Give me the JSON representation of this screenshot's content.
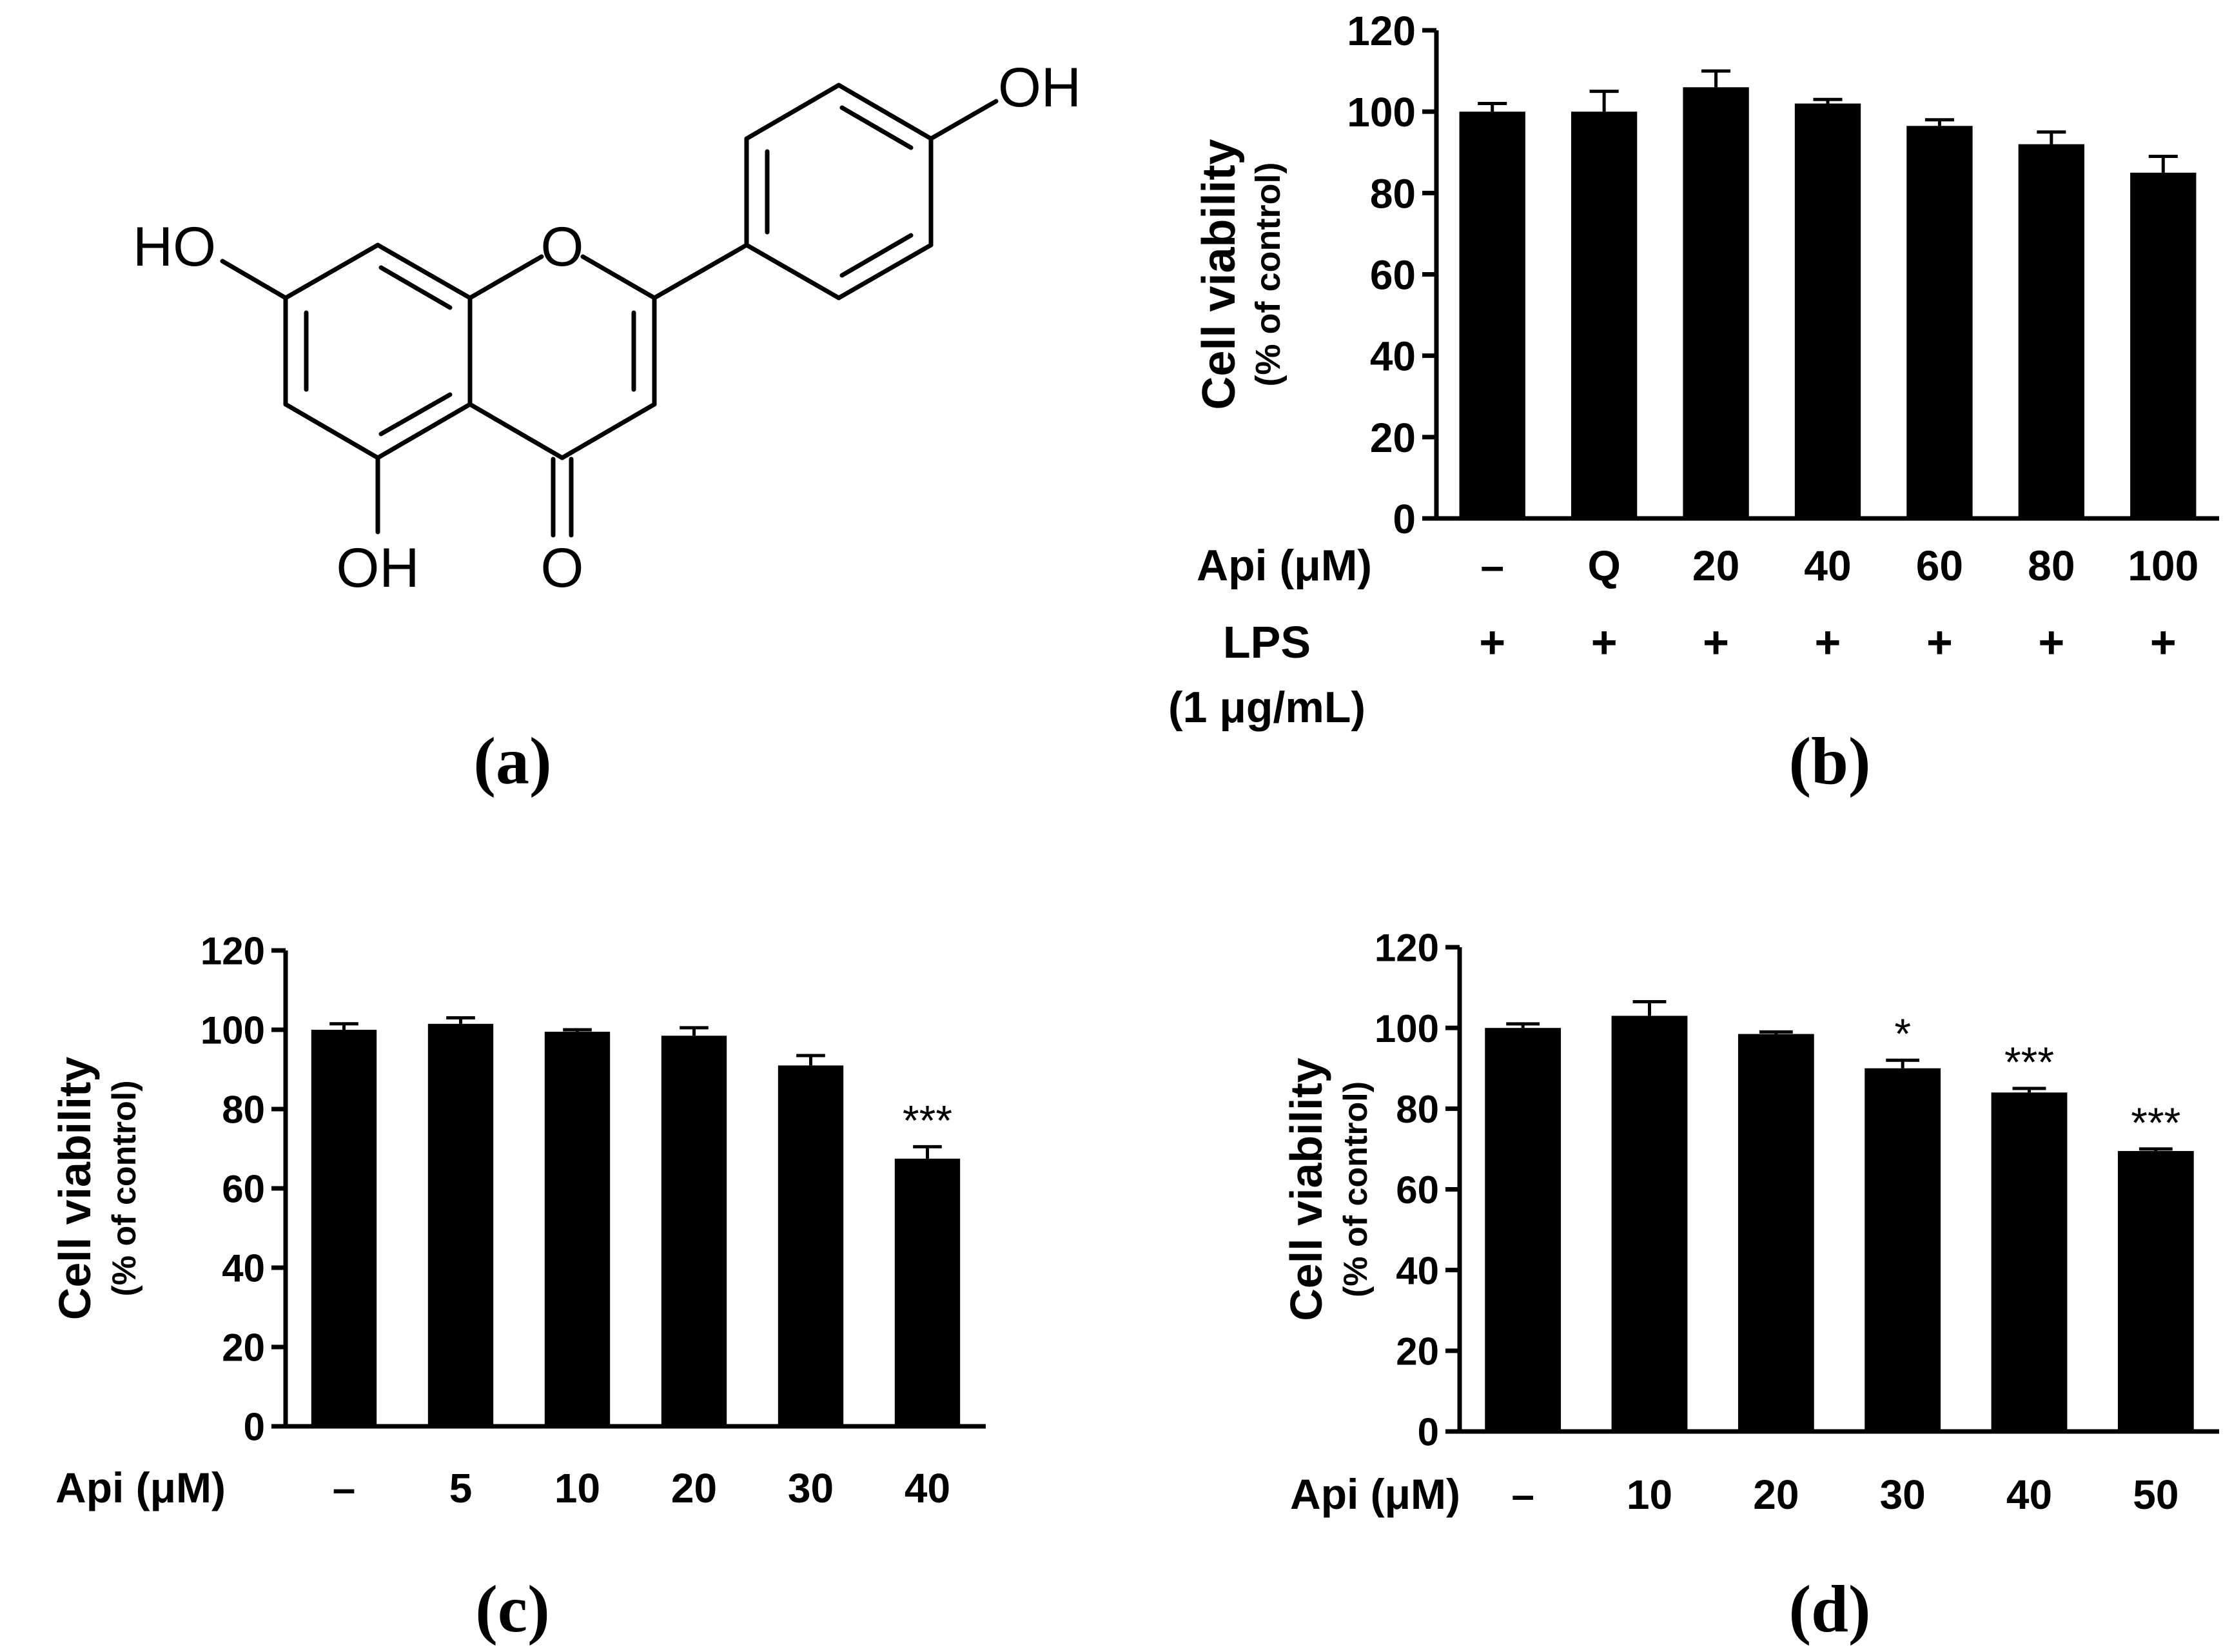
{
  "panels": {
    "a": {
      "label": "(a)",
      "atoms": {
        "oh_top": "OH",
        "ho_left": "HO",
        "o_ring": "O",
        "oh_bottom": "OH",
        "o_carbonyl": "O"
      }
    },
    "b": {
      "label": "(b)"
    },
    "c": {
      "label": "(c)"
    },
    "d": {
      "label": "(d)"
    }
  },
  "colors": {
    "bar": "#000000",
    "axis": "#000000",
    "background": "#ffffff"
  },
  "chart_data": [
    {
      "id": "b",
      "type": "bar",
      "title": "",
      "ylabel": "Cell viability",
      "ylabel_sub": "(% of control)",
      "ylim": [
        0,
        120
      ],
      "yticks": [
        0,
        20,
        40,
        60,
        80,
        100,
        120
      ],
      "xlabel": "Api (μM)",
      "categories": [
        "–",
        "Q",
        "20",
        "40",
        "60",
        "80",
        "100"
      ],
      "values": [
        100,
        100,
        106,
        102,
        96.5,
        92,
        85
      ],
      "errors": [
        2,
        5,
        4,
        1,
        1.5,
        3,
        4
      ],
      "significance": [
        "",
        "",
        "",
        "",
        "",
        "",
        ""
      ],
      "extra_row": {
        "label_line1": "LPS",
        "label_line2": "(1 μg/mL)",
        "values": [
          "+",
          "+",
          "+",
          "+",
          "+",
          "+",
          "+"
        ]
      }
    },
    {
      "id": "c",
      "type": "bar",
      "title": "",
      "ylabel": "Cell viability",
      "ylabel_sub": "(% of control)",
      "ylim": [
        0,
        120
      ],
      "yticks": [
        0,
        20,
        40,
        60,
        80,
        100,
        120
      ],
      "xlabel": "Api (μM)",
      "categories": [
        "–",
        "5",
        "10",
        "20",
        "30",
        "40"
      ],
      "values": [
        100,
        101.5,
        99.5,
        98.5,
        91,
        67.5
      ],
      "errors": [
        1.5,
        1.5,
        0.5,
        2,
        2.5,
        3
      ],
      "significance": [
        "",
        "",
        "",
        "",
        "",
        "***"
      ]
    },
    {
      "id": "d",
      "type": "bar",
      "title": "",
      "ylabel": "Cell viability",
      "ylabel_sub": "(% of control)",
      "ylim": [
        0,
        120
      ],
      "yticks": [
        0,
        20,
        40,
        60,
        80,
        100,
        120
      ],
      "xlabel": "Api (μM)",
      "categories": [
        "–",
        "10",
        "20",
        "30",
        "40",
        "50"
      ],
      "values": [
        100,
        103,
        98.5,
        90,
        84,
        69.5
      ],
      "errors": [
        1,
        3.5,
        0.5,
        2,
        1,
        0.5
      ],
      "significance": [
        "",
        "",
        "",
        "*",
        "***",
        "***"
      ]
    }
  ]
}
